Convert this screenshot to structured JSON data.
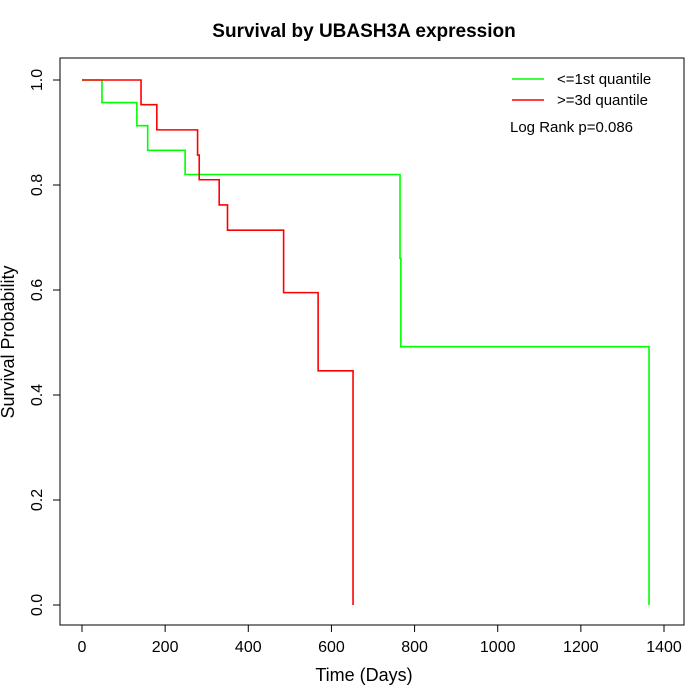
{
  "chart_data": {
    "type": "line",
    "title": "Survival by UBASH3A expression",
    "xlabel": "Time (Days)",
    "ylabel": "Survival Probability",
    "xlim": [
      0,
      1400
    ],
    "ylim": [
      0,
      1
    ],
    "x_ticks": [
      0,
      200,
      400,
      600,
      800,
      1000,
      1200,
      1400
    ],
    "y_ticks": [
      0.0,
      0.2,
      0.4,
      0.6,
      0.8,
      1.0
    ],
    "x_tick_labels": [
      "0",
      "200",
      "400",
      "600",
      "800",
      "1000",
      "1200",
      "1400"
    ],
    "y_tick_labels": [
      "0.0",
      "0.2",
      "0.4",
      "0.6",
      "0.8",
      "1.0"
    ],
    "grid": false,
    "legend_position": "top-right",
    "annotation": "Log Rank p=0.086",
    "series": [
      {
        "name": "<=1st quantile",
        "color": "#00ff00",
        "step": [
          [
            0,
            1.0
          ],
          [
            48,
            0.957
          ],
          [
            132,
            0.913
          ],
          [
            158,
            0.866
          ],
          [
            248,
            0.82
          ],
          [
            765,
            0.82
          ],
          [
            765,
            0.66
          ],
          [
            767,
            0.492
          ],
          [
            1364,
            0.492
          ],
          [
            1364,
            0.0
          ]
        ]
      },
      {
        "name": ">=3d quantile",
        "color": "#ff0000",
        "step": [
          [
            0,
            1.0
          ],
          [
            142,
            0.953
          ],
          [
            180,
            0.905
          ],
          [
            278,
            0.857
          ],
          [
            282,
            0.81
          ],
          [
            330,
            0.762
          ],
          [
            350,
            0.714
          ],
          [
            485,
            0.595
          ],
          [
            568,
            0.446
          ],
          [
            652,
            0.0
          ]
        ]
      }
    ]
  }
}
